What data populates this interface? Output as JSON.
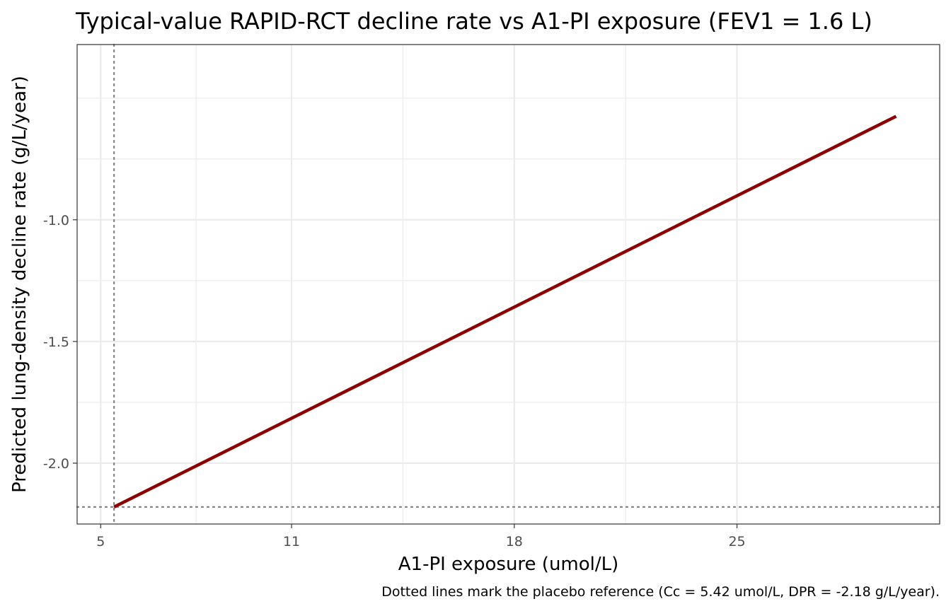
{
  "chart_data": {
    "type": "line",
    "title": "Typical-value RAPID-RCT decline rate vs A1-PI exposure (FEV1 = 1.6 L)",
    "xlabel": "A1-PI exposure (umol/L)",
    "ylabel": "Predicted lung-density decline rate (g/L/year)",
    "caption": "Dotted lines mark the placebo reference (Cc = 5.42 umol/L, DPR = -2.18 g/L/year).",
    "xlim": [
      4.26,
      31.37
    ],
    "ylim": [
      -2.25,
      -0.28
    ],
    "x_ticks": [
      5,
      11,
      18,
      25
    ],
    "x_tick_labels": [
      "5",
      "11",
      "18",
      "25"
    ],
    "x_minor_ticks": [
      8,
      14.5,
      21.5
    ],
    "y_ticks": [
      -2.0,
      -1.5,
      -1.0
    ],
    "y_tick_labels": [
      "-2.0",
      "-1.5",
      "-1.0"
    ],
    "y_minor_ticks": [
      -1.75,
      -1.25,
      -0.75,
      -0.5
    ],
    "grid": true,
    "series": [
      {
        "x": [
          5.42,
          30.0
        ],
        "y": [
          -2.18,
          -0.575
        ],
        "color": "#8b0000"
      }
    ],
    "reference_lines": {
      "vline_x": 5.42,
      "hline_y": -2.18,
      "color": "#808080",
      "style": "dotted"
    }
  }
}
